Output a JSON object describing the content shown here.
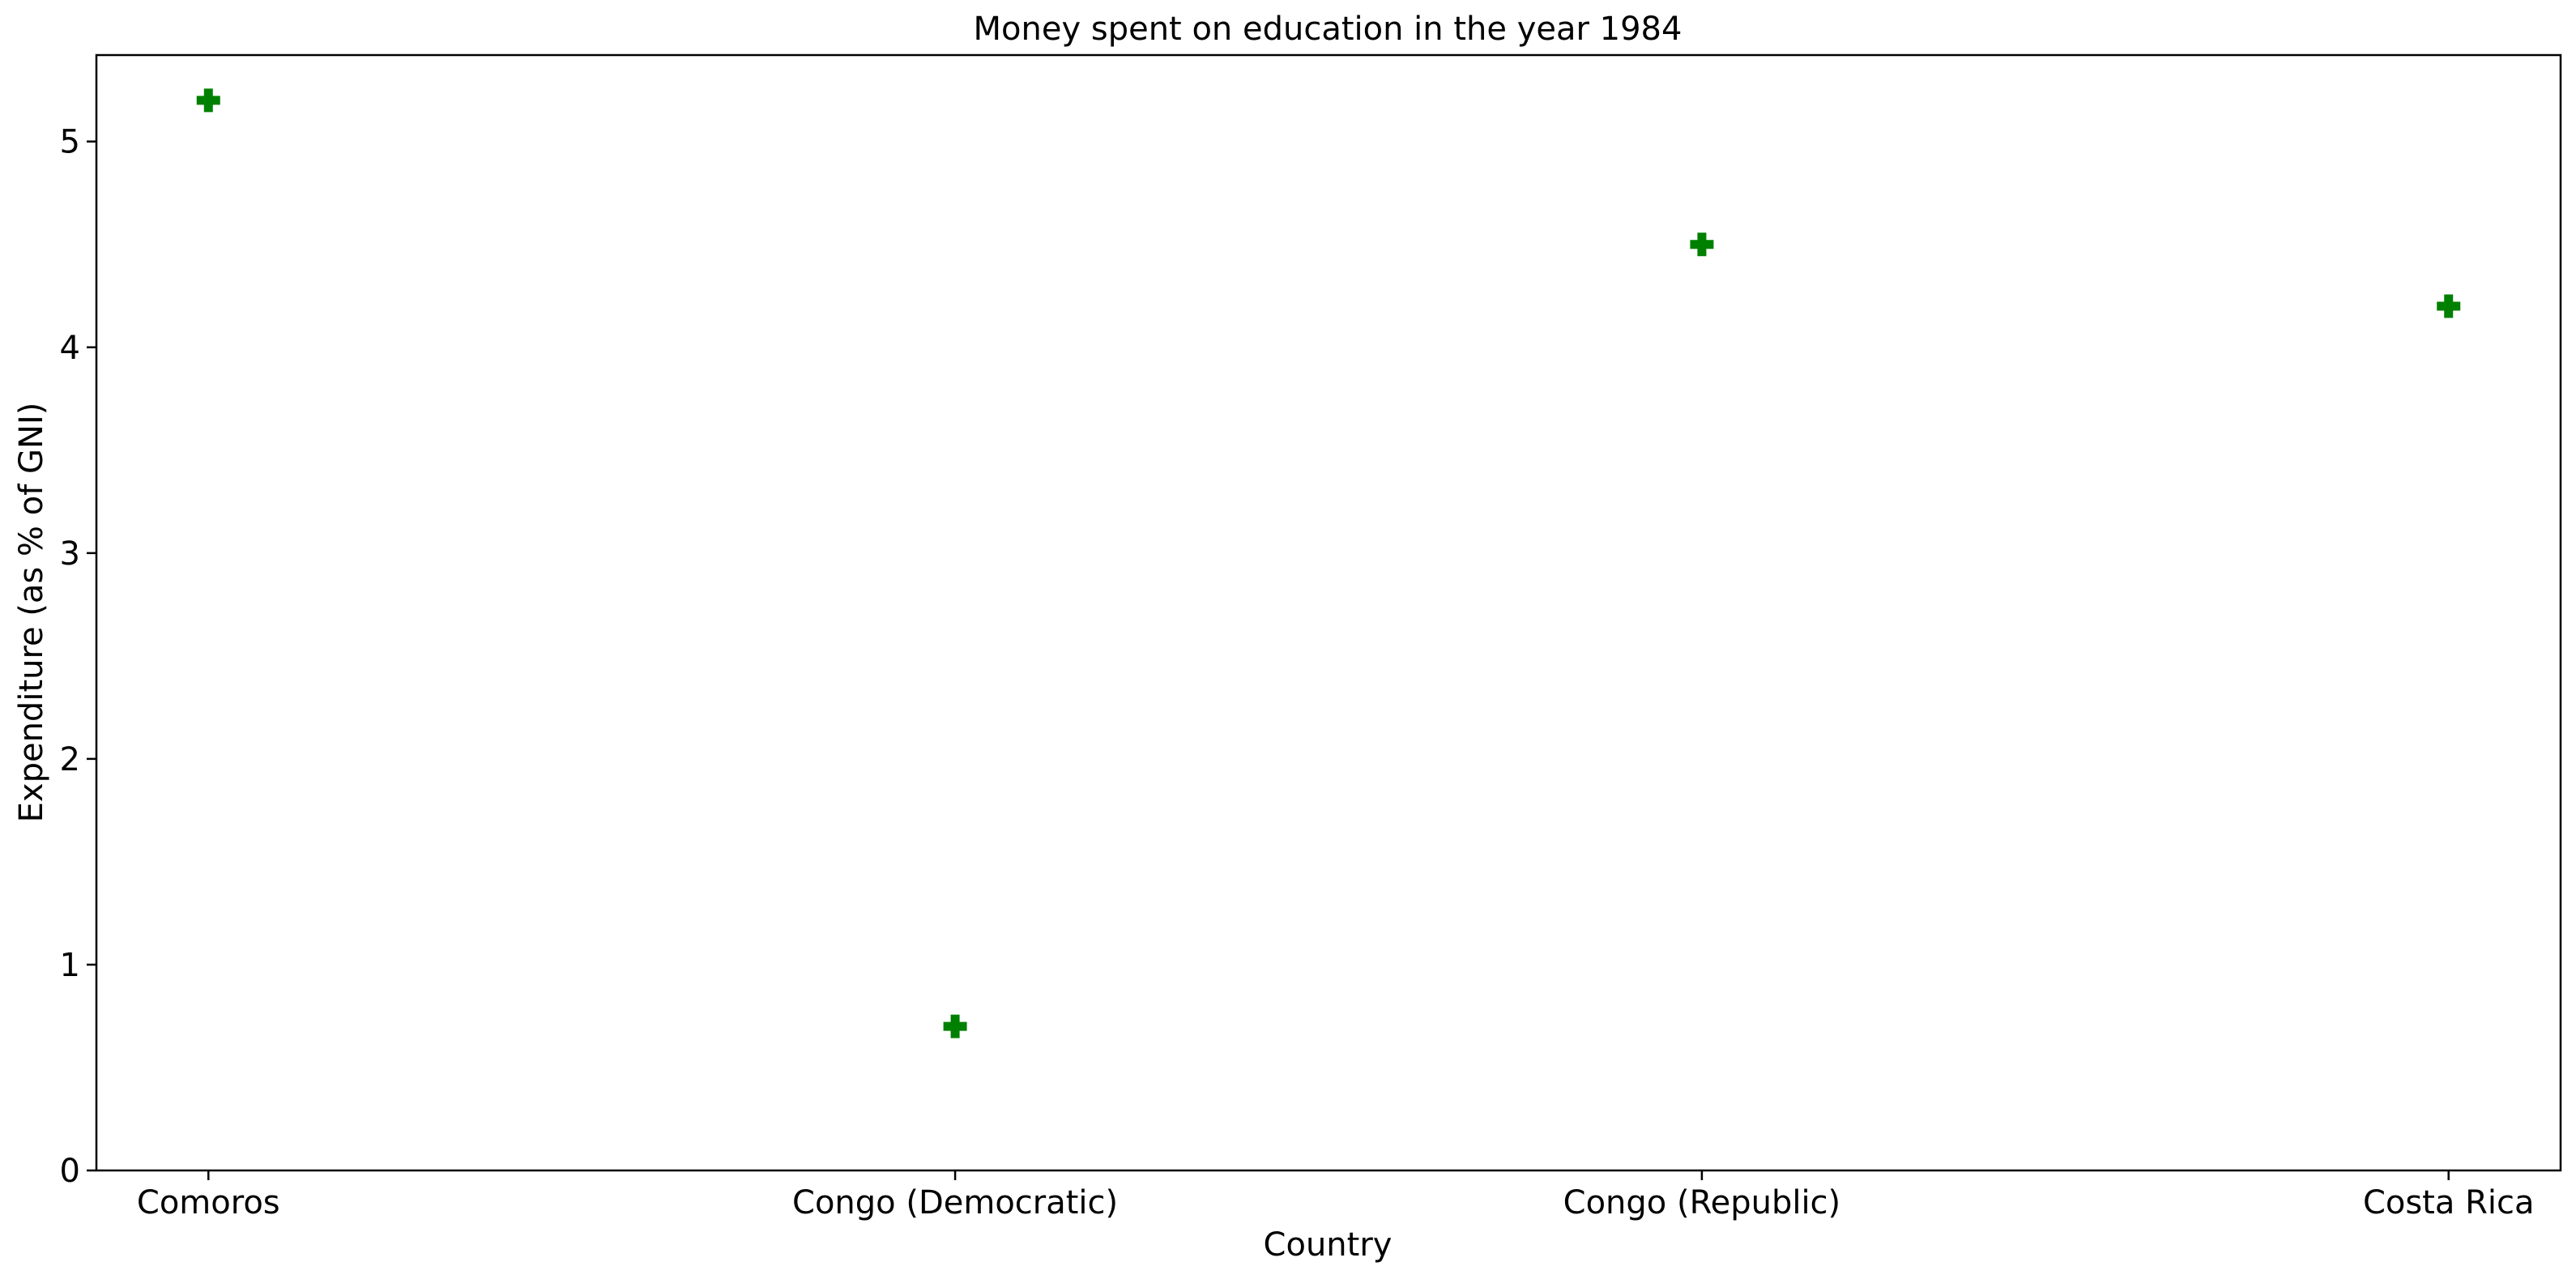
{
  "chart_data": {
    "type": "scatter",
    "title": "Money spent on education in the year 1984",
    "xlabel": "Country",
    "ylabel": "Expenditure (as % of GNI)",
    "categories": [
      "Comoros",
      "Congo (Democratic)",
      "Congo (Republic)",
      "Costa Rica"
    ],
    "values": [
      5.2,
      0.7,
      4.5,
      4.2
    ],
    "ylim": [
      0,
      5.42
    ],
    "yticks": [
      0,
      1,
      2,
      3,
      4,
      5
    ],
    "marker": "plus-filled",
    "color": "#008000",
    "grid": false,
    "legend": "none"
  }
}
